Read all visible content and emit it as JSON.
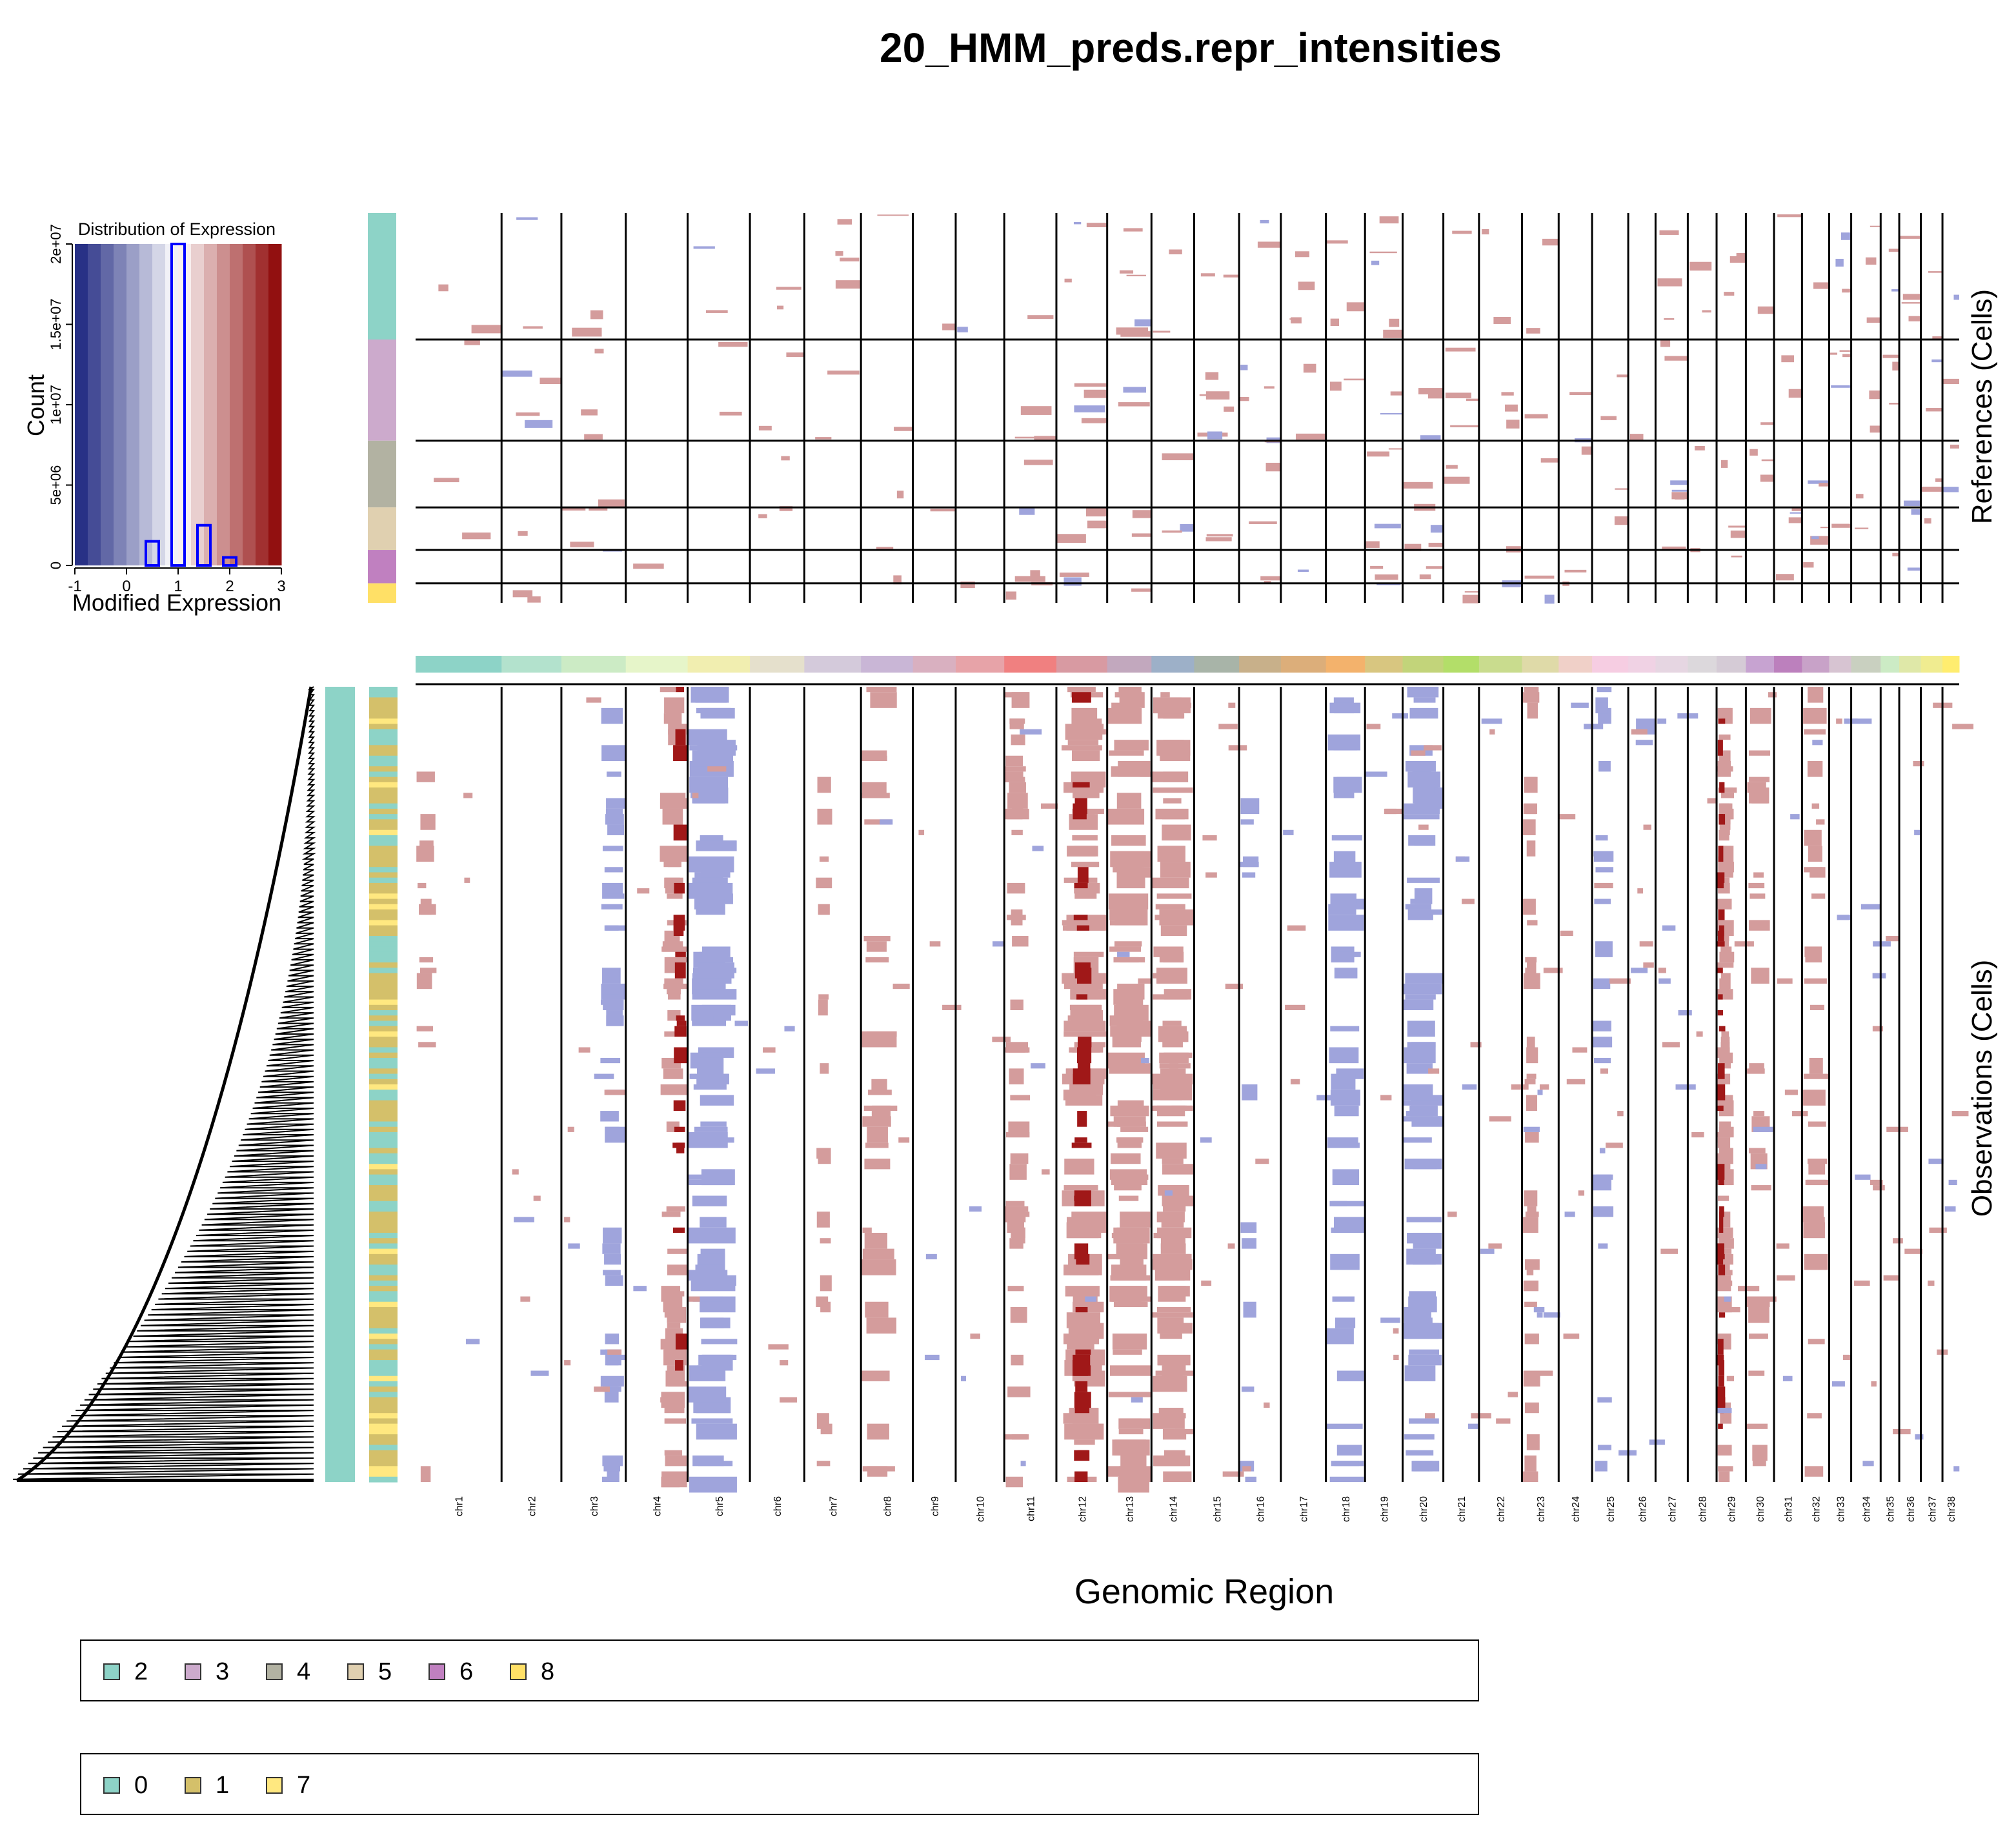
{
  "chart_data": {
    "type": "heatmap",
    "title": "20_HMM_preds.repr_intensities",
    "xlabel": "Genomic Region",
    "ylabel_references": "References (Cells)",
    "ylabel_observations": "Observations (Cells)",
    "chromosomes": [
      "chr1",
      "chr2",
      "chr3",
      "chr4",
      "chr5",
      "chr6",
      "chr7",
      "chr8",
      "chr9",
      "chr10",
      "chr11",
      "chr12",
      "chr13",
      "chr14",
      "chr15",
      "chr16",
      "chr17",
      "chr18",
      "chr19",
      "chr20",
      "chr21",
      "chr22",
      "chr23",
      "chr24",
      "chr25",
      "chr26",
      "chr27",
      "chr28",
      "chr29",
      "chr30",
      "chr31",
      "chr32",
      "chr33",
      "chr34",
      "chr35",
      "chr36",
      "chr37",
      "chr38"
    ],
    "chrom_relative_lengths": [
      122.7,
      85.4,
      91.9,
      88.3,
      88.9,
      77.6,
      80.9,
      74.1,
      61.1,
      69.3,
      74.4,
      72.5,
      63.2,
      60.9,
      64.2,
      59.6,
      64.3,
      55.8,
      53.7,
      58.1,
      50.9,
      61.4,
      52.3,
      47.7,
      51.6,
      39.0,
      46.0,
      41.1,
      41.8,
      40.2,
      39.9,
      38.8,
      31.4,
      42.1,
      26.5,
      30.8,
      30.9,
      23.9
    ],
    "chrom_colors": [
      "#8dd3c7",
      "#b3e2cd",
      "#ccebc5",
      "#e6f5c9",
      "#f1eeb0",
      "#e5e0cc",
      "#d4cadb",
      "#c9b6d6",
      "#d9b0c0",
      "#e7a3a8",
      "#f08080",
      "#d89aa2",
      "#c2a8be",
      "#9db0c8",
      "#a8b4a8",
      "#c8b08a",
      "#dcae7a",
      "#f3b26c",
      "#d8c680",
      "#c2d47a",
      "#b3de69",
      "#c9dc8e",
      "#dfdaa8",
      "#f0d0c8",
      "#f6cde2",
      "#f0d2e4",
      "#e6d6e2",
      "#dcd8dc",
      "#d5cbd6",
      "#c7a3d1",
      "#bc80bd",
      "#c8a2c8",
      "#d7c4d2",
      "#c9d0c0",
      "#ccebc5",
      "#dfe8a8",
      "#f0ec90",
      "#ffed6f"
    ],
    "reference_groups": [
      {
        "label": "2",
        "color": "#8dd3c7",
        "cells": 110
      },
      {
        "label": "3",
        "color": "#ccaacc",
        "cells": 88
      },
      {
        "label": "4",
        "color": "#b2b2a2",
        "cells": 58
      },
      {
        "label": "5",
        "color": "#e0d0b0",
        "cells": 37
      },
      {
        "label": "6",
        "color": "#c080c0",
        "cells": 29
      },
      {
        "label": "8",
        "color": "#ffe066",
        "cells": 17
      }
    ],
    "observation_clusters": [
      {
        "label": "0",
        "color": "#8dd3c7"
      },
      {
        "label": "1",
        "color": "#d4c06a"
      },
      {
        "label": "7",
        "color": "#ffe880"
      }
    ],
    "color_scale": {
      "min": -1,
      "max": 3,
      "center": 1,
      "low_color": "#1a237e",
      "mid_color": "#ffffff",
      "high_color": "#8b0000"
    },
    "state_colors": {
      "loss": "#9fa4dc",
      "gain": "#d49c9c",
      "strong_gain": "#a01818"
    },
    "histogram": {
      "title": "Distribution of Expression",
      "xlabel": "Modified Expression",
      "ylabel": "Count",
      "xticks": [
        "-1",
        "0",
        "1",
        "2",
        "3"
      ],
      "yticks": [
        "0",
        "5e+06",
        "1e+07",
        "1.5e+07",
        "2e+07"
      ],
      "xlim": [
        -1,
        3
      ],
      "ylim": [
        0,
        20000000
      ],
      "bins": [
        {
          "x0": 0.375,
          "x1": 0.625,
          "count": 1500000
        },
        {
          "x0": 0.875,
          "x1": 1.125,
          "count": 20000000
        },
        {
          "x0": 1.375,
          "x1": 1.625,
          "count": 2500000
        },
        {
          "x0": 1.875,
          "x1": 2.125,
          "count": 500000
        }
      ]
    },
    "gain_segments": [
      {
        "chr": "chr1",
        "start": 0.0,
        "end": 0.25,
        "cells": 12,
        "level": 1
      },
      {
        "chr": "chr4",
        "start": 0.55,
        "end": 1.0,
        "cells": 60,
        "level": 1
      },
      {
        "chr": "chr4",
        "start": 0.75,
        "end": 1.0,
        "cells": 20,
        "level": 2
      },
      {
        "chr": "chr7",
        "start": 0.2,
        "end": 0.5,
        "cells": 18,
        "level": 1
      },
      {
        "chr": "chr8",
        "start": 0.0,
        "end": 0.7,
        "cells": 30,
        "level": 1
      },
      {
        "chr": "chr11",
        "start": 0.0,
        "end": 0.5,
        "cells": 45,
        "level": 1
      },
      {
        "chr": "chr12",
        "start": 0.1,
        "end": 1.0,
        "cells": 85,
        "level": 1
      },
      {
        "chr": "chr12",
        "start": 0.3,
        "end": 0.7,
        "cells": 35,
        "level": 2
      },
      {
        "chr": "chr13",
        "start": 0.0,
        "end": 1.0,
        "cells": 90,
        "level": 1
      },
      {
        "chr": "chr14",
        "start": 0.0,
        "end": 1.0,
        "cells": 90,
        "level": 1
      },
      {
        "chr": "chr23",
        "start": 0.0,
        "end": 0.5,
        "cells": 35,
        "level": 1
      },
      {
        "chr": "chr29",
        "start": 0.0,
        "end": 0.6,
        "cells": 80,
        "level": 1
      },
      {
        "chr": "chr29",
        "start": 0.0,
        "end": 0.3,
        "cells": 40,
        "level": 2
      },
      {
        "chr": "chr30",
        "start": 0.0,
        "end": 0.9,
        "cells": 25,
        "level": 1
      },
      {
        "chr": "chr32",
        "start": 0.0,
        "end": 1.0,
        "cells": 30,
        "level": 1
      }
    ],
    "loss_segments": [
      {
        "chr": "chr3",
        "start": 0.6,
        "end": 1.0,
        "cells": 45
      },
      {
        "chr": "chr5",
        "start": 0.0,
        "end": 0.8,
        "cells": 85
      },
      {
        "chr": "chr16",
        "start": 0.0,
        "end": 0.5,
        "cells": 12
      },
      {
        "chr": "chr18",
        "start": 0.0,
        "end": 1.0,
        "cells": 40
      },
      {
        "chr": "chr20",
        "start": 0.0,
        "end": 1.0,
        "cells": 60
      },
      {
        "chr": "chr25",
        "start": 0.0,
        "end": 0.6,
        "cells": 22
      },
      {
        "chr": "chr26",
        "start": 0.0,
        "end": 1.0,
        "cells": 3
      }
    ]
  },
  "legends": {
    "references": [
      {
        "label": "2",
        "color": "#8dd3c7"
      },
      {
        "label": "3",
        "color": "#ccaacc"
      },
      {
        "label": "4",
        "color": "#b2b2a2"
      },
      {
        "label": "5",
        "color": "#e0d0b0"
      },
      {
        "label": "6",
        "color": "#c080c0"
      },
      {
        "label": "8",
        "color": "#ffe066"
      }
    ],
    "observations": [
      {
        "label": "0",
        "color": "#8dd3c7"
      },
      {
        "label": "1",
        "color": "#d4c06a"
      },
      {
        "label": "7",
        "color": "#ffe880"
      }
    ]
  }
}
